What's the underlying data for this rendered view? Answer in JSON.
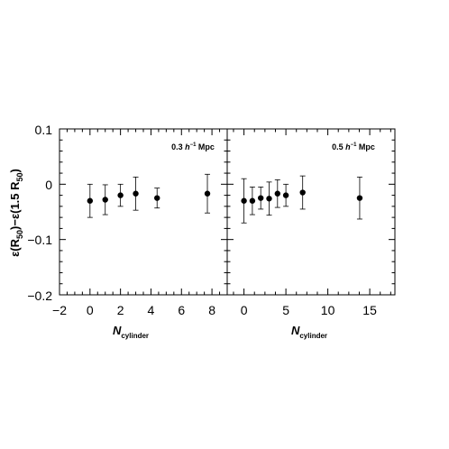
{
  "chart_data": {
    "type": "scatter",
    "ylabel": "ε(R50) − ε(1.5 R50)",
    "ylabel_parts": {
      "eps1": "ε(R",
      "sub1": "50",
      "mid": ")−ε(1.5 R",
      "sub2": "50",
      "end": ")"
    },
    "ylim": [
      -0.2,
      0.1
    ],
    "yticks": [
      0.1,
      0,
      -0.1,
      -0.2
    ],
    "ytick_labels": [
      "0.1",
      "0",
      "−0.1",
      "−0.2"
    ],
    "panels": [
      {
        "annotation": "0.3 h⁻¹ Mpc",
        "annotation_parts": {
          "pre": "0.3 ",
          "h": "h",
          "sup": "−1",
          "post": " Mpc"
        },
        "xlabel": "N_cylinder",
        "xlabel_parts": {
          "main": "N",
          "sub": "cylinder"
        },
        "xlim": [
          -2.0,
          9.0
        ],
        "xticks": [
          -2,
          0,
          2,
          4,
          6,
          8
        ],
        "xtick_labels": [
          "−2",
          "0",
          "2",
          "4",
          "6",
          "8"
        ],
        "points": [
          {
            "x": 0.0,
            "y": -0.03,
            "err": 0.03
          },
          {
            "x": 1.0,
            "y": -0.028,
            "err": 0.027
          },
          {
            "x": 2.0,
            "y": -0.02,
            "err": 0.02
          },
          {
            "x": 3.0,
            "y": -0.017,
            "err": 0.03
          },
          {
            "x": 4.4,
            "y": -0.025,
            "err": 0.018
          },
          {
            "x": 7.7,
            "y": -0.017,
            "err": 0.035
          }
        ]
      },
      {
        "annotation": "0.5 h⁻¹ Mpc",
        "annotation_parts": {
          "pre": "0.5 ",
          "h": "h",
          "sup": "−1",
          "post": " Mpc"
        },
        "xlabel": "N_cylinder",
        "xlabel_parts": {
          "main": "N",
          "sub": "cylinder"
        },
        "xlim": [
          -2.0,
          18.0
        ],
        "xticks": [
          0,
          5,
          10,
          15
        ],
        "xtick_labels": [
          "0",
          "5",
          "10",
          "15"
        ],
        "points": [
          {
            "x": 0.0,
            "y": -0.03,
            "err": 0.04
          },
          {
            "x": 1.0,
            "y": -0.03,
            "err": 0.025
          },
          {
            "x": 2.0,
            "y": -0.025,
            "err": 0.02
          },
          {
            "x": 3.0,
            "y": -0.026,
            "err": 0.03
          },
          {
            "x": 4.0,
            "y": -0.017,
            "err": 0.025
          },
          {
            "x": 5.0,
            "y": -0.02,
            "err": 0.02
          },
          {
            "x": 7.0,
            "y": -0.015,
            "err": 0.03
          },
          {
            "x": 13.8,
            "y": -0.025,
            "err": 0.038
          }
        ]
      }
    ]
  }
}
